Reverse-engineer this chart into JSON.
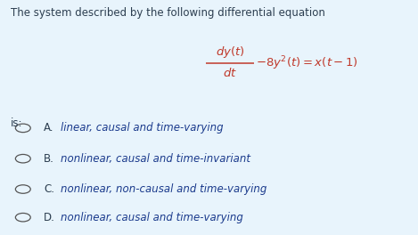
{
  "background_color": "#e8f4fc",
  "title_text": "The system described by the following differential equation",
  "title_color": "#2c3e50",
  "title_fontsize": 8.5,
  "equation_color": "#c0392b",
  "equation_fontsize": 9.5,
  "is_text": "is:",
  "is_color": "#2c3e50",
  "is_fontsize": 8.5,
  "options": [
    {
      "label": "A.",
      "text": "linear, causal and time-varying"
    },
    {
      "label": "B.",
      "text": "nonlinear, causal and time-invariant"
    },
    {
      "label": "C.",
      "text": "nonlinear, non-causal and time-varying"
    },
    {
      "label": "D.",
      "text": "nonlinear, causal and time-varying"
    }
  ],
  "option_label_color": "#2c3e50",
  "option_text_color": "#1a3a8c",
  "option_fontsize": 8.5,
  "circle_color": "#555555",
  "fig_width": 4.69,
  "fig_height": 2.64,
  "dpi": 100
}
